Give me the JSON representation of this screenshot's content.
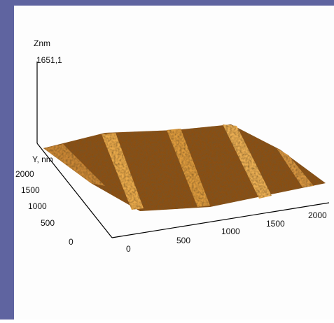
{
  "z_axis": {
    "label": "Znm",
    "max": "1651,1"
  },
  "y_axis": {
    "label": "Y, nm",
    "ticks": [
      "2000",
      "1500",
      "1000",
      "500",
      "0"
    ]
  },
  "x_axis": {
    "ticks": [
      "0",
      "500",
      "1000",
      "1500",
      "2000"
    ]
  }
}
